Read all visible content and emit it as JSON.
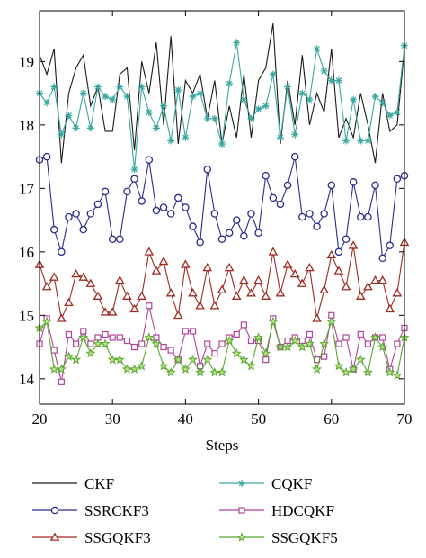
{
  "chart_data": {
    "type": "line",
    "title": "",
    "xlabel": "Steps",
    "ylabel": "",
    "xlim": [
      20,
      70
    ],
    "ylim": [
      13.6,
      19.8
    ],
    "x_ticks": [
      20,
      30,
      40,
      50,
      60,
      70
    ],
    "y_ticks": [
      14,
      15,
      16,
      17,
      18,
      19
    ],
    "grid": false,
    "legend_position": "bottom",
    "x": [
      20,
      21,
      22,
      23,
      24,
      25,
      26,
      27,
      28,
      29,
      30,
      31,
      32,
      33,
      34,
      35,
      36,
      37,
      38,
      39,
      40,
      41,
      42,
      43,
      44,
      45,
      46,
      47,
      48,
      49,
      50,
      51,
      52,
      53,
      54,
      55,
      56,
      57,
      58,
      59,
      60,
      61,
      62,
      63,
      64,
      65,
      66,
      67,
      68,
      69,
      70
    ],
    "series": [
      {
        "name": "CKF",
        "color": "#1a1a1a",
        "marker": "none",
        "values": [
          19.1,
          18.8,
          19.2,
          17.4,
          18.5,
          18.9,
          19.1,
          18.3,
          18.6,
          17.9,
          17.9,
          18.8,
          18.9,
          17.6,
          19.0,
          18.5,
          19.3,
          18.0,
          19.4,
          17.7,
          18.7,
          18.5,
          18.8,
          18.1,
          18.7,
          17.7,
          18.3,
          17.8,
          18.8,
          17.8,
          18.7,
          18.9,
          19.6,
          17.7,
          18.7,
          18.0,
          19.1,
          18.0,
          18.5,
          18.2,
          19.2,
          17.8,
          18.1,
          17.8,
          18.5,
          18.0,
          17.4,
          18.5,
          17.9,
          18.0,
          19.2
        ]
      },
      {
        "name": "CQKF",
        "color": "#3aa8a0",
        "marker": "asterisk",
        "values": [
          18.5,
          18.35,
          18.6,
          17.85,
          18.15,
          17.95,
          18.5,
          17.95,
          18.6,
          18.45,
          18.4,
          18.6,
          18.45,
          17.3,
          18.6,
          18.2,
          17.95,
          18.3,
          17.75,
          18.55,
          17.8,
          18.45,
          18.5,
          18.1,
          18.1,
          17.7,
          18.65,
          19.3,
          18.4,
          18.1,
          18.25,
          18.3,
          18.8,
          17.8,
          18.6,
          17.85,
          18.5,
          18.4,
          19.2,
          18.85,
          18.7,
          18.7,
          17.75,
          18.4,
          17.75,
          17.75,
          18.45,
          18.35,
          18.15,
          18.2,
          19.25
        ]
      },
      {
        "name": "SSRCKF3",
        "color": "#2b2b8f",
        "marker": "circle",
        "values": [
          17.45,
          17.5,
          16.35,
          16.0,
          16.55,
          16.6,
          16.35,
          16.6,
          16.75,
          16.95,
          16.2,
          16.2,
          16.95,
          17.15,
          16.8,
          17.45,
          16.65,
          16.7,
          16.6,
          16.85,
          16.7,
          16.4,
          16.15,
          17.3,
          16.6,
          16.2,
          16.3,
          16.5,
          16.25,
          16.6,
          16.3,
          17.2,
          16.85,
          16.75,
          17.05,
          17.5,
          16.55,
          16.6,
          16.4,
          16.6,
          17.05,
          16.0,
          16.2,
          17.1,
          16.55,
          16.55,
          17.05,
          15.9,
          16.1,
          17.15,
          17.2
        ]
      },
      {
        "name": "SSGQKF3",
        "color": "#9e2a20",
        "marker": "triangle",
        "values": [
          15.8,
          15.45,
          15.6,
          14.95,
          15.2,
          15.65,
          15.6,
          15.5,
          15.3,
          15.05,
          15.05,
          15.55,
          15.3,
          15.1,
          15.3,
          16.0,
          15.7,
          15.85,
          15.35,
          15.0,
          15.8,
          15.35,
          15.15,
          15.75,
          15.15,
          15.4,
          15.75,
          15.3,
          15.55,
          15.35,
          15.55,
          15.3,
          16.0,
          15.35,
          15.8,
          15.65,
          15.5,
          15.75,
          14.95,
          15.4,
          15.95,
          15.7,
          15.45,
          16.1,
          15.3,
          15.45,
          15.55,
          15.55,
          15.1,
          15.35,
          16.15
        ]
      },
      {
        "name": "HDCQKF",
        "color": "#b0449a",
        "marker": "square",
        "values": [
          14.55,
          14.95,
          14.45,
          13.95,
          14.7,
          14.55,
          14.75,
          14.55,
          14.65,
          14.7,
          14.65,
          14.65,
          14.6,
          14.5,
          14.55,
          15.15,
          14.65,
          14.5,
          14.45,
          14.3,
          14.75,
          14.75,
          14.2,
          14.55,
          14.4,
          14.55,
          14.65,
          14.7,
          14.85,
          14.6,
          14.6,
          14.3,
          14.95,
          14.5,
          14.6,
          14.65,
          14.6,
          14.7,
          14.3,
          14.35,
          15.0,
          14.55,
          14.65,
          14.15,
          14.7,
          14.55,
          14.65,
          14.65,
          14.15,
          14.55,
          14.8
        ]
      },
      {
        "name": "SSGQKF5",
        "color": "#5aa830",
        "marker": "star",
        "values": [
          14.8,
          14.9,
          14.15,
          14.15,
          14.35,
          14.3,
          14.65,
          14.4,
          14.55,
          14.55,
          14.3,
          14.3,
          14.15,
          14.15,
          14.2,
          14.65,
          14.55,
          14.2,
          14.1,
          14.3,
          14.15,
          14.3,
          14.1,
          14.3,
          14.1,
          14.1,
          14.6,
          14.4,
          14.3,
          14.2,
          14.65,
          14.4,
          14.9,
          14.5,
          14.5,
          14.6,
          14.5,
          14.55,
          14.15,
          14.55,
          14.9,
          14.2,
          14.1,
          14.15,
          14.3,
          14.1,
          14.65,
          14.5,
          14.1,
          14.05,
          14.65
        ]
      }
    ]
  }
}
